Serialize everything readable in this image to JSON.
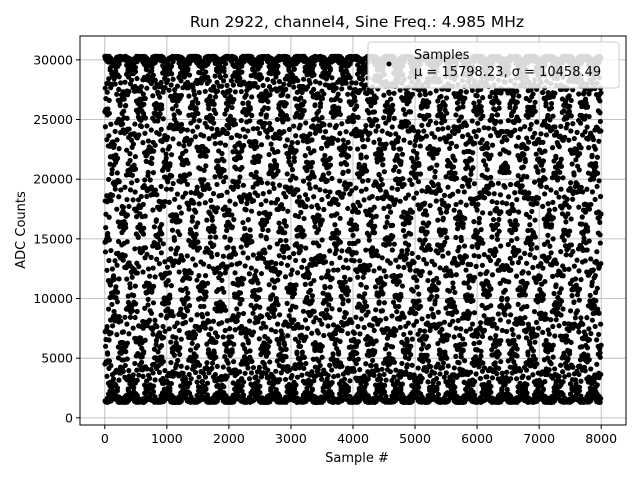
{
  "chart_data": {
    "type": "scatter",
    "title": "Run 2922, channel4, Sine Freq.: 4.985 MHz",
    "xlabel": "Sample #",
    "ylabel": "ADC Counts",
    "xlim": [
      -400,
      8400
    ],
    "ylim": [
      -600,
      32000
    ],
    "xticks": [
      0,
      1000,
      2000,
      3000,
      4000,
      5000,
      6000,
      7000,
      8000
    ],
    "yticks": [
      0,
      5000,
      10000,
      15000,
      20000,
      25000,
      30000
    ],
    "grid": true,
    "legend": {
      "placement": "top-right",
      "series_label": "Samples",
      "stats_label": "μ = 15798.23, σ = 10458.49"
    },
    "series": [
      {
        "name": "Samples",
        "marker": "dot",
        "color": "#000000",
        "n_points": 8000,
        "model": {
          "mean": 15798.23,
          "amplitude": 14500,
          "beat_period_samples": 26.4,
          "envelope_period_samples": 2290,
          "phase_offsets_deg": [
            0,
            45,
            90,
            135,
            180,
            225,
            270,
            315
          ]
        }
      }
    ]
  }
}
